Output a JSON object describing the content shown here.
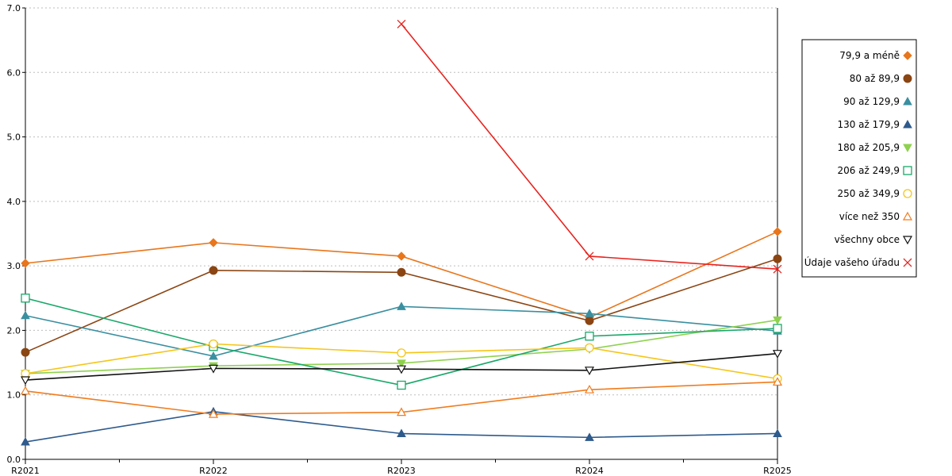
{
  "chart_data": {
    "type": "line",
    "title": "",
    "xlabel": "",
    "ylabel": "",
    "categories": [
      "R2021",
      "R2022",
      "R2023",
      "R2024",
      "R2025"
    ],
    "ylim": [
      0,
      7
    ],
    "yticks": [
      "0.0",
      "1.0",
      "2.0",
      "3.0",
      "4.0",
      "5.0",
      "6.0",
      "7.0"
    ],
    "grid": "horizontal dotted",
    "legend_position": "right",
    "series": [
      {
        "name": "79,9 a méně",
        "color": "#e8761c",
        "marker": "diamond-filled",
        "values": [
          3.04,
          3.36,
          3.15,
          2.2,
          3.53
        ]
      },
      {
        "name": "80 až 89,9",
        "color": "#8b4513",
        "marker": "circle-filled",
        "values": [
          1.66,
          2.93,
          2.9,
          2.15,
          3.11
        ]
      },
      {
        "name": "90 až 129,9",
        "color": "#3a8fa0",
        "marker": "triangle-up-filled",
        "values": [
          2.23,
          1.6,
          2.37,
          2.26,
          1.99
        ]
      },
      {
        "name": "130 až 179,9",
        "color": "#2e5a8c",
        "marker": "triangle-up-filled",
        "values": [
          0.27,
          0.74,
          0.4,
          0.34,
          0.4
        ]
      },
      {
        "name": "180 až 205,9",
        "color": "#8fd14f",
        "marker": "triangle-down-filled",
        "values": [
          1.33,
          1.45,
          1.49,
          1.71,
          2.16
        ]
      },
      {
        "name": "206 až 249,9",
        "color": "#1aa86a",
        "marker": "square-open",
        "values": [
          2.5,
          1.75,
          1.15,
          1.91,
          2.03
        ]
      },
      {
        "name": "250 až 349,9",
        "color": "#f5c518",
        "marker": "circle-open",
        "values": [
          1.33,
          1.79,
          1.65,
          1.73,
          1.25
        ]
      },
      {
        "name": "více než 350",
        "color": "#f07c1e",
        "marker": "triangle-up-open",
        "values": [
          1.06,
          0.7,
          0.73,
          1.08,
          1.2
        ]
      },
      {
        "name": "všechny obce",
        "color": "#111111",
        "marker": "triangle-down-open",
        "values": [
          1.23,
          1.41,
          1.4,
          1.38,
          1.64
        ]
      },
      {
        "name": "Údaje vašeho úřadu",
        "color": "#e8231e",
        "marker": "x",
        "values": [
          null,
          null,
          6.75,
          3.15,
          2.95
        ]
      }
    ]
  }
}
